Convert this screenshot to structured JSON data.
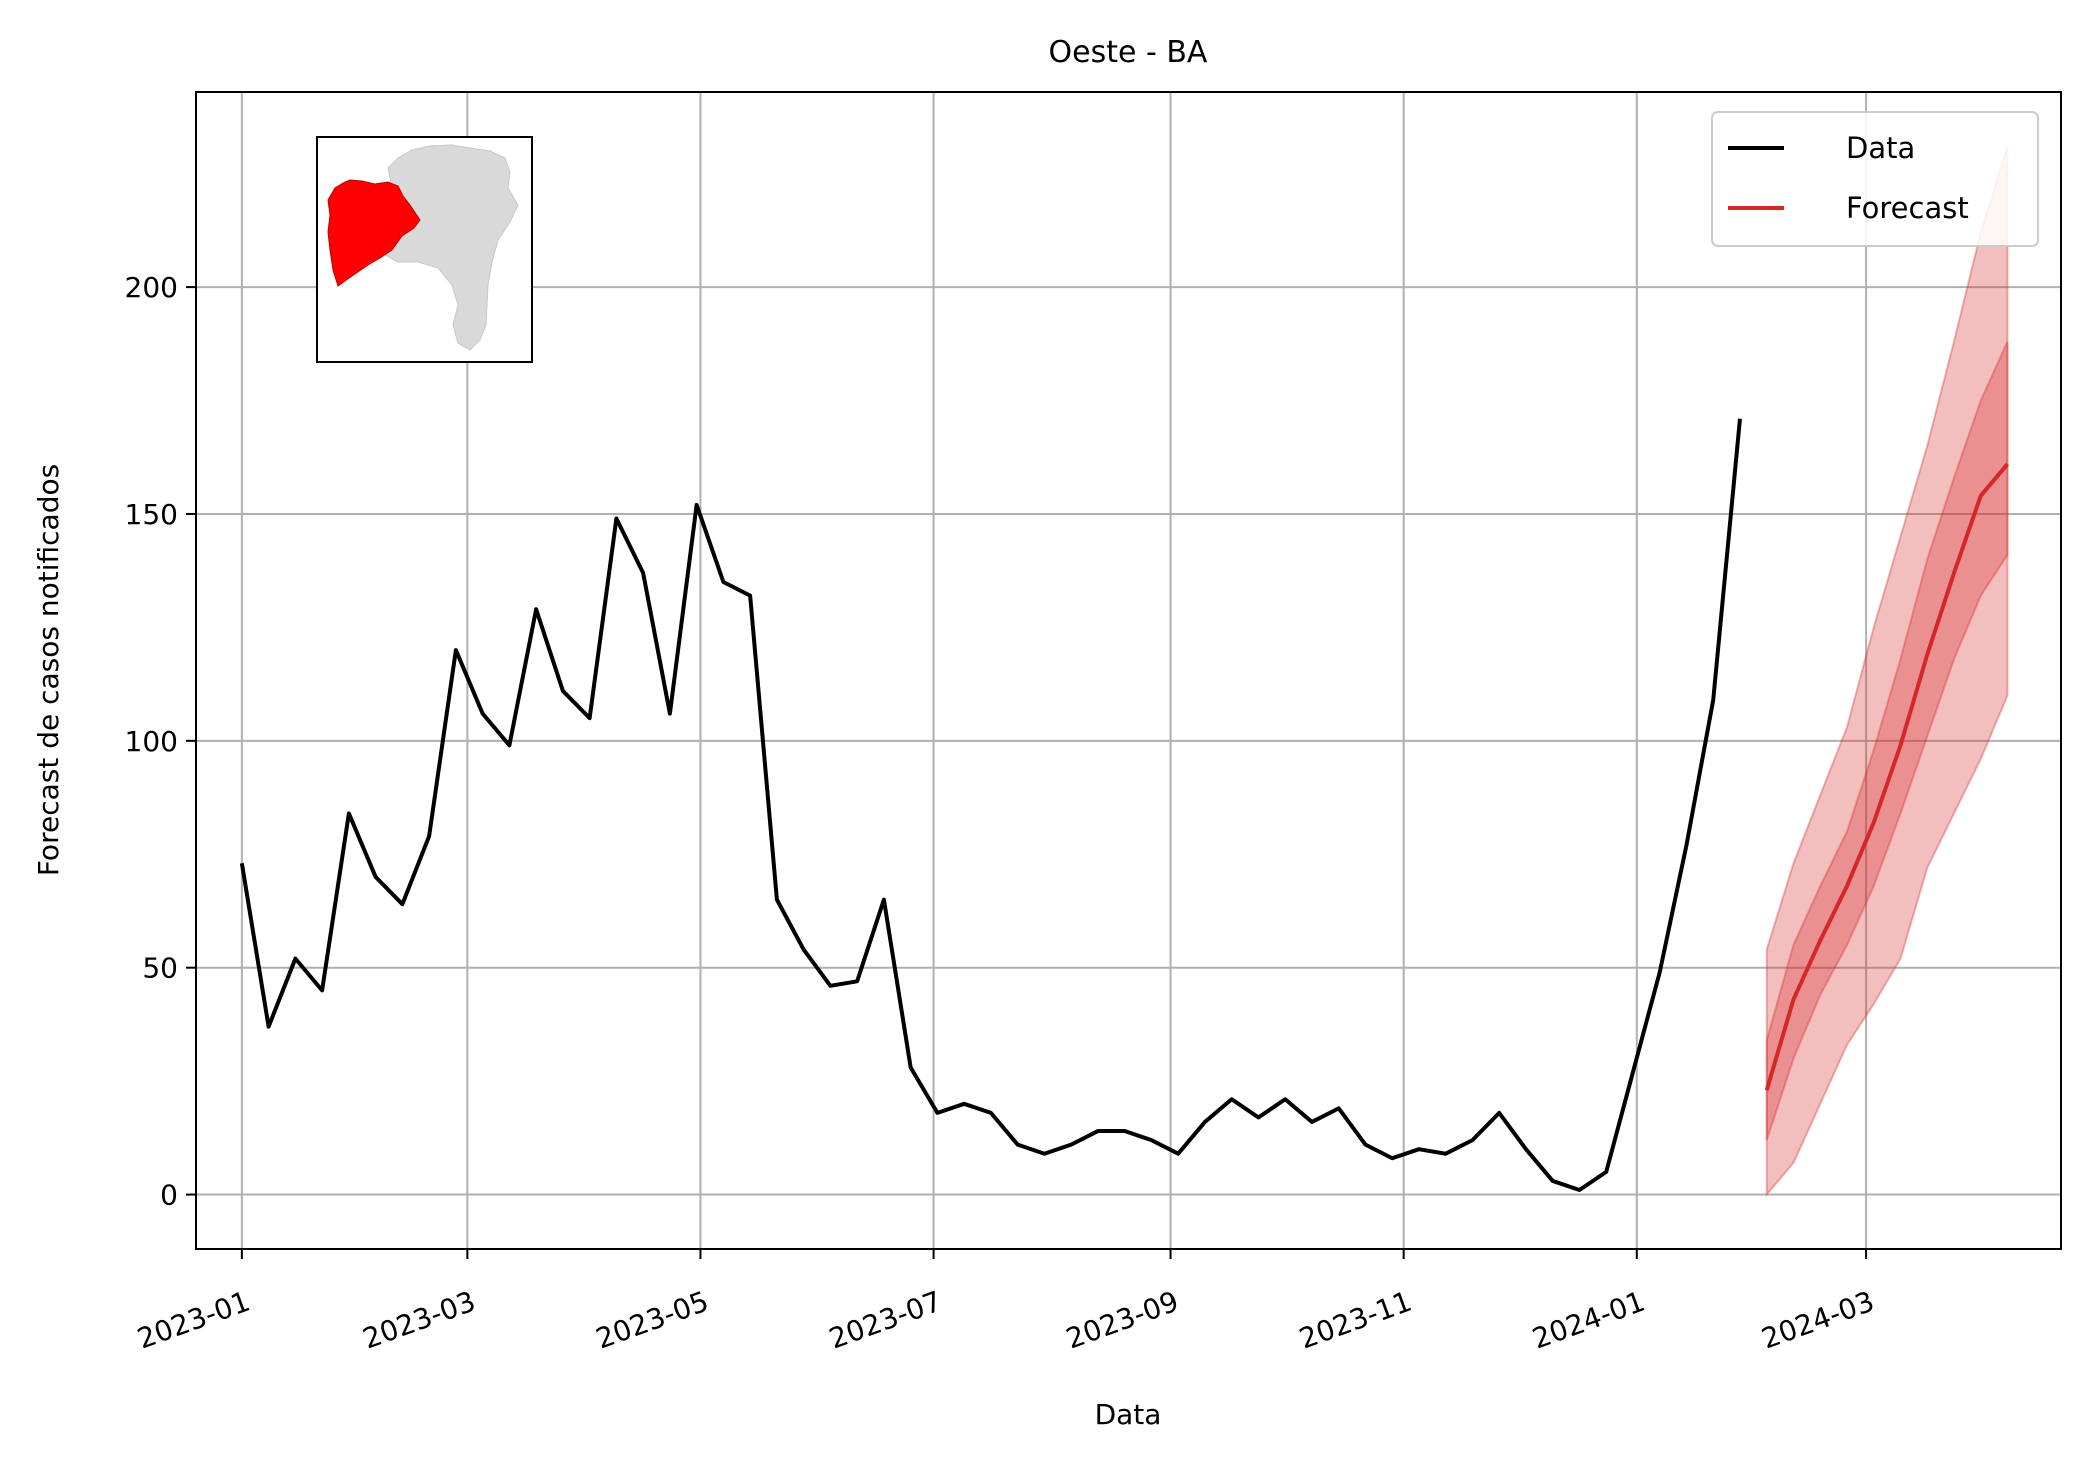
{
  "chart_data": {
    "type": "line",
    "title": "Oeste - BA",
    "xlabel": "Data",
    "ylabel": "Forecast de casos notificados",
    "xlim": [
      "2022-12-20",
      "2024-04-21"
    ],
    "ylim": [
      -12,
      243
    ],
    "x_ticks": [
      "2023-01-01",
      "2023-03-01",
      "2023-05-01",
      "2023-07-01",
      "2023-09-01",
      "2023-11-01",
      "2024-01-01",
      "2024-03-01"
    ],
    "x_tick_labels": [
      "2023-01",
      "2023-03",
      "2023-05",
      "2023-07",
      "2023-09",
      "2023-11",
      "2024-01",
      "2024-03"
    ],
    "y_ticks": [
      0,
      50,
      100,
      150,
      200
    ],
    "y_tick_labels": [
      "0",
      "50",
      "100",
      "150",
      "200"
    ],
    "grid": true,
    "legend": {
      "position": "top-right",
      "entries": [
        {
          "label": "Data",
          "color": "#000000"
        },
        {
          "label": "Forecast",
          "color": "#d62728"
        }
      ]
    },
    "series": [
      {
        "name": "Data",
        "color": "#000000",
        "x": [
          "2023-01-01",
          "2023-01-08",
          "2023-01-15",
          "2023-01-22",
          "2023-01-29",
          "2023-02-05",
          "2023-02-12",
          "2023-02-19",
          "2023-02-26",
          "2023-03-05",
          "2023-03-12",
          "2023-03-19",
          "2023-03-26",
          "2023-04-02",
          "2023-04-09",
          "2023-04-16",
          "2023-04-23",
          "2023-04-30",
          "2023-05-07",
          "2023-05-14",
          "2023-05-21",
          "2023-05-28",
          "2023-06-04",
          "2023-06-11",
          "2023-06-18",
          "2023-06-25",
          "2023-07-02",
          "2023-07-09",
          "2023-07-16",
          "2023-07-23",
          "2023-07-30",
          "2023-08-06",
          "2023-08-13",
          "2023-08-20",
          "2023-08-27",
          "2023-09-03",
          "2023-09-10",
          "2023-09-17",
          "2023-09-24",
          "2023-10-01",
          "2023-10-08",
          "2023-10-15",
          "2023-10-22",
          "2023-10-29",
          "2023-11-05",
          "2023-11-12",
          "2023-11-19",
          "2023-11-26",
          "2023-12-03",
          "2023-12-10",
          "2023-12-17",
          "2023-12-24",
          "2023-12-31",
          "2024-01-07",
          "2024-01-14",
          "2024-01-21",
          "2024-01-28"
        ],
        "values": [
          73,
          37,
          52,
          45,
          84,
          70,
          64,
          79,
          120,
          106,
          99,
          129,
          111,
          105,
          149,
          137,
          106,
          152,
          135,
          132,
          65,
          54,
          46,
          47,
          65,
          28,
          18,
          20,
          18,
          11,
          9,
          11,
          14,
          14,
          12,
          9,
          16,
          21,
          17,
          21,
          16,
          19,
          11,
          8,
          10,
          9,
          12,
          18,
          10,
          3,
          1,
          5,
          27,
          49,
          77,
          109,
          171
        ]
      },
      {
        "name": "Forecast",
        "color": "#d62728",
        "x": [
          "2024-02-04",
          "2024-02-11",
          "2024-02-18",
          "2024-02-25",
          "2024-03-03",
          "2024-03-10",
          "2024-03-17",
          "2024-03-24",
          "2024-03-31",
          "2024-04-07"
        ],
        "values": [
          23,
          43,
          56,
          68,
          82,
          99,
          119,
          137,
          154,
          161
        ],
        "inner_lower": [
          12,
          30,
          44,
          55,
          68,
          84,
          101,
          118,
          132,
          141
        ],
        "inner_upper": [
          34,
          55,
          68,
          80,
          98,
          118,
          140,
          158,
          175,
          188
        ],
        "outer_lower": [
          0,
          7,
          20,
          33,
          42,
          52,
          72,
          84,
          96,
          110
        ],
        "outer_upper": [
          54,
          73,
          88,
          103,
          125,
          145,
          165,
          188,
          212,
          231
        ]
      }
    ]
  }
}
